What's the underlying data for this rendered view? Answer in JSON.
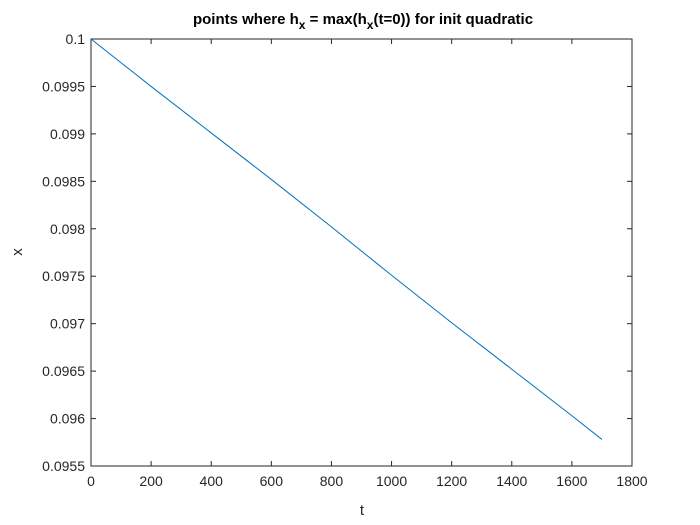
{
  "chart_data": {
    "type": "line",
    "title": {
      "part1": "points where h",
      "sub1": "x",
      "part2": " = max(h",
      "sub2": "x",
      "part3": "(t=0)) for init quadratic"
    },
    "xlabel": "t",
    "ylabel": "x",
    "xlim": [
      0,
      1800
    ],
    "ylim": [
      0.0955,
      0.1
    ],
    "xticks": [
      0,
      200,
      400,
      600,
      800,
      1000,
      1200,
      1400,
      1600,
      1800
    ],
    "yticks": [
      0.0955,
      0.096,
      0.0965,
      0.097,
      0.0975,
      0.098,
      0.0985,
      0.099,
      0.0995,
      0.1
    ],
    "xtick_labels": [
      "0",
      "200",
      "400",
      "600",
      "800",
      "1000",
      "1200",
      "1400",
      "1600",
      "1800"
    ],
    "ytick_labels": [
      "0.0955",
      "0.096",
      "0.0965",
      "0.097",
      "0.0975",
      "0.098",
      "0.0985",
      "0.099",
      "0.0995",
      "0.1"
    ],
    "grid": false,
    "series": [
      {
        "color": "#0072bd",
        "x": [
          0,
          200,
          400,
          600,
          800,
          1000,
          1200,
          1400,
          1600,
          1700
        ],
        "y": [
          0.1,
          0.0995,
          0.09901,
          0.09852,
          0.09802,
          0.09751,
          0.09701,
          0.09652,
          0.09603,
          0.09578
        ]
      }
    ]
  }
}
